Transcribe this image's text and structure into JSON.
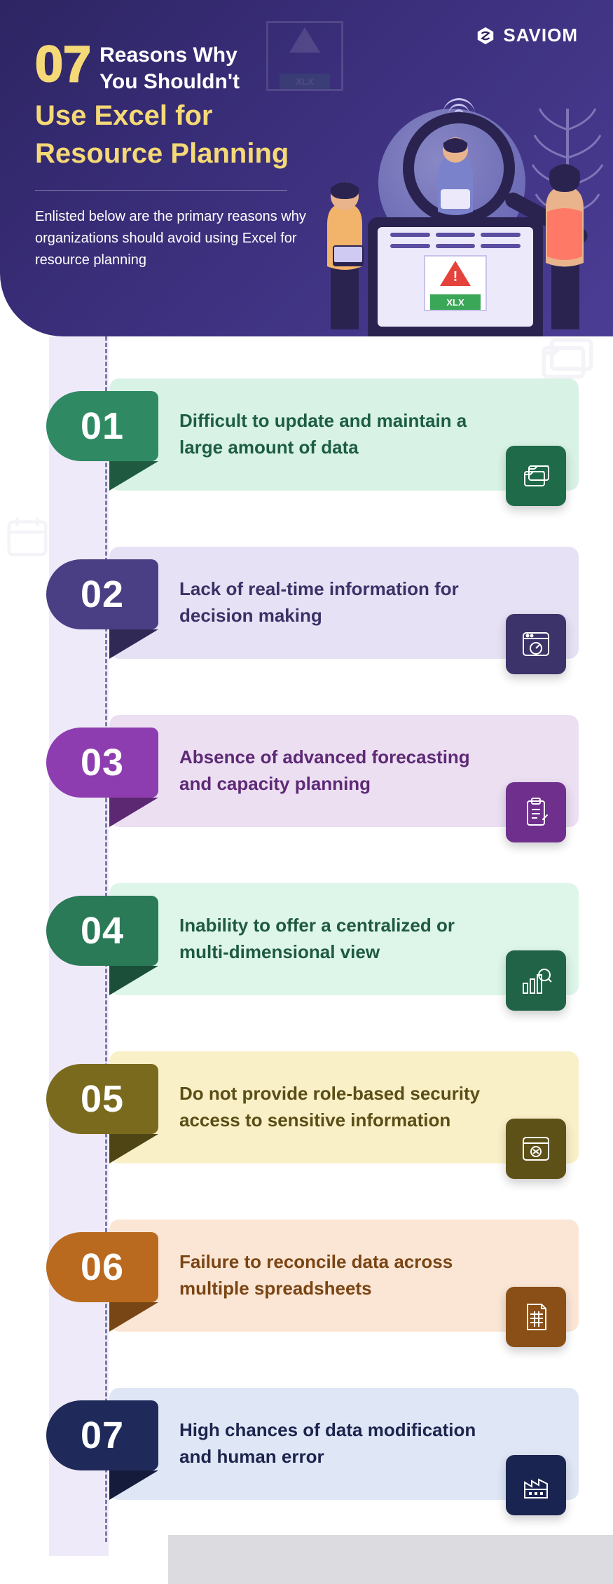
{
  "brand": {
    "name": "SAVIOM"
  },
  "header": {
    "big_number": "07",
    "reasons_line": "Reasons Why\nYou Shouldn't",
    "accent_line1": "Use Excel for",
    "accent_line2": "Resource Planning",
    "blurb": "Enlisted below are the primary reasons why organizations should avoid using Excel for resource planning",
    "xlx_label": "XLX"
  },
  "palette": {
    "header_bg_from": "#2d2563",
    "header_bg_to": "#4b3d94",
    "accent_yellow": "#f5d976",
    "lilac_strip": "#efeaf9",
    "dash": "#7e7aa9"
  },
  "items": [
    {
      "num": "01",
      "text": "Difficult to update and maintain a large amount of data",
      "badge_color": "#2f8a63",
      "card_bg": "#d8f2e6",
      "text_color": "#1d5d43",
      "chip_color": "#1f6a49",
      "icon": "folders"
    },
    {
      "num": "02",
      "text": "Lack of real-time information for decision making",
      "badge_color": "#4a3f85",
      "card_bg": "#e7e1f5",
      "text_color": "#3a3266",
      "chip_color": "#3b3369",
      "icon": "browser-gauge"
    },
    {
      "num": "03",
      "text": "Absence of advanced forecasting and capacity planning",
      "badge_color": "#8e3db0",
      "card_bg": "#ecdff2",
      "text_color": "#5e2a76",
      "chip_color": "#6f2f8c",
      "icon": "clipboard"
    },
    {
      "num": "04",
      "text": "Inability to offer a centralized or multi-dimensional view",
      "badge_color": "#2a7a57",
      "card_bg": "#def6ea",
      "text_color": "#1f5a40",
      "chip_color": "#216347",
      "icon": "chart-search"
    },
    {
      "num": "05",
      "text": "Do not provide role-based security access to sensitive information",
      "badge_color": "#7a6a1e",
      "card_bg": "#faf0c8",
      "text_color": "#5a4e16",
      "chip_color": "#5e5117",
      "icon": "browser-lock"
    },
    {
      "num": "06",
      "text": "Failure to reconcile data across multiple spreadsheets",
      "badge_color": "#b96a1e",
      "card_bg": "#fbe6d5",
      "text_color": "#7a4514",
      "chip_color": "#8a4f16",
      "icon": "spreadsheet"
    },
    {
      "num": "07",
      "text": "High chances of data modification and human error",
      "badge_color": "#1f2a5a",
      "card_bg": "#dfe7f7",
      "text_color": "#1c254d",
      "chip_color": "#1a2450",
      "icon": "factory"
    }
  ]
}
